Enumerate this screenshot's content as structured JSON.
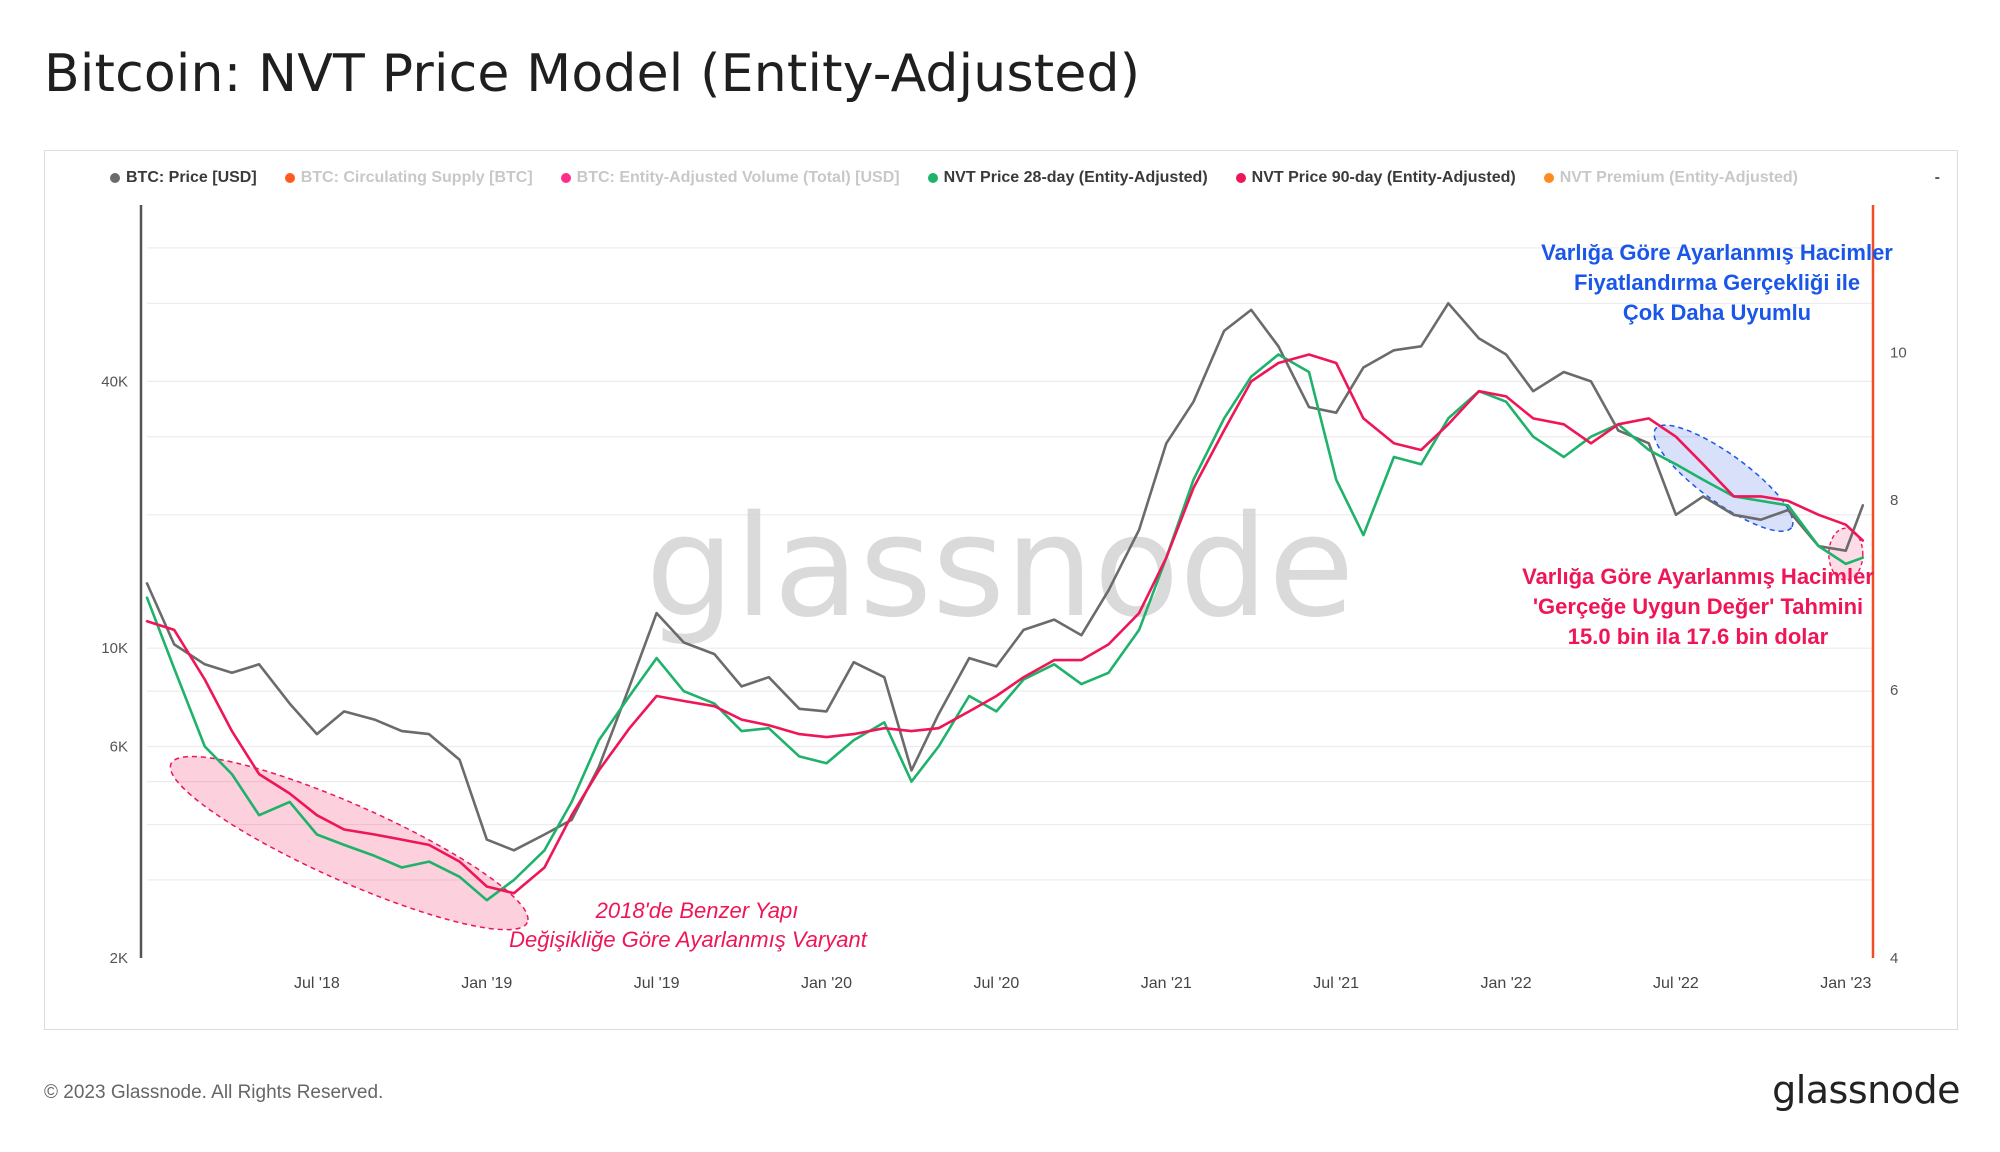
{
  "title": "Bitcoin: NVT Price Model (Entity-Adjusted)",
  "watermark": "glassnode",
  "footer": "© 2023 Glassnode. All Rights Reserved.",
  "brand": "glassnode",
  "legend": [
    {
      "label": "BTC: Price [USD]",
      "color": "#6b6b6b",
      "active": true
    },
    {
      "label": "BTC: Circulating Supply [BTC]",
      "color": "#ff5a1f",
      "active": false
    },
    {
      "label": "BTC: Entity-Adjusted Volume (Total) [USD]",
      "color": "#ff2d8a",
      "active": false
    },
    {
      "label": "NVT Price 28-day (Entity-Adjusted)",
      "color": "#1fb26b",
      "active": true
    },
    {
      "label": "NVT Price 90-day (Entity-Adjusted)",
      "color": "#ee1657",
      "active": true
    },
    {
      "label": "NVT Premium (Entity-Adjusted)",
      "color": "#ff8a1f",
      "active": false
    }
  ],
  "legend_trailing": "-",
  "annotations": {
    "left": [
      "2018'de Benzer Yapı",
      "Değişikliğe Göre Ayarlanmış Varyant"
    ],
    "top_right": [
      "Varlığa Göre Ayarlanmış Hacimler",
      "Fiyatlandırma Gerçekliği ile",
      "Çok Daha Uyumlu"
    ],
    "bottom_right": [
      "Varlığa Göre Ayarlanmış Hacimler",
      "'Gerçeğe Uygun Değer' Tahmini",
      "15.0 bin ila 17.6 bin dolar"
    ],
    "colors": {
      "pink": "#ee1657",
      "blue": "#1a56e8"
    }
  },
  "chart_data": {
    "type": "line",
    "x_tick_labels": [
      "Jul '18",
      "Jan '19",
      "Jul '19",
      "Jan '20",
      "Jul '20",
      "Jan '21",
      "Jul '21",
      "Jan '22",
      "Jul '22",
      "Jan '23"
    ],
    "x_tick_dates": [
      2018.5,
      2019.0,
      2019.5,
      2020.0,
      2020.5,
      2021.0,
      2021.5,
      2022.0,
      2022.5,
      2023.0
    ],
    "x_range": [
      2018.0,
      2023.08
    ],
    "y_left": {
      "scale": "log",
      "range": [
        2000,
        100000
      ],
      "tick_labels": [
        "2K",
        "6K",
        "10K",
        "40K"
      ],
      "tick_values": [
        2000,
        6000,
        10000,
        40000
      ]
    },
    "y_right": {
      "scale": "log",
      "range": [
        4,
        12.5
      ],
      "tick_labels": [
        "4",
        "6",
        "8",
        "10"
      ],
      "tick_values": [
        4,
        6,
        8,
        10
      ]
    },
    "grid": true,
    "x": [
      2018.0,
      2018.08,
      2018.17,
      2018.25,
      2018.33,
      2018.42,
      2018.5,
      2018.58,
      2018.67,
      2018.75,
      2018.83,
      2018.92,
      2019.0,
      2019.08,
      2019.17,
      2019.25,
      2019.33,
      2019.42,
      2019.5,
      2019.58,
      2019.67,
      2019.75,
      2019.83,
      2019.92,
      2020.0,
      2020.08,
      2020.17,
      2020.25,
      2020.33,
      2020.42,
      2020.5,
      2020.58,
      2020.67,
      2020.75,
      2020.83,
      2020.92,
      2021.0,
      2021.08,
      2021.17,
      2021.25,
      2021.33,
      2021.42,
      2021.5,
      2021.58,
      2021.67,
      2021.75,
      2021.83,
      2021.92,
      2022.0,
      2022.08,
      2022.17,
      2022.25,
      2022.33,
      2022.42,
      2022.5,
      2022.58,
      2022.67,
      2022.75,
      2022.83,
      2022.92,
      2023.0,
      2023.05
    ],
    "series": [
      {
        "name": "BTC: Price [USD]",
        "color": "#6b6b6b",
        "width": 2.6,
        "values": [
          14000,
          10200,
          9200,
          8800,
          9200,
          7500,
          6400,
          7200,
          6900,
          6500,
          6400,
          5600,
          3700,
          3500,
          3800,
          4100,
          5400,
          8200,
          12000,
          10300,
          9700,
          8200,
          8600,
          7300,
          7200,
          9300,
          8600,
          5300,
          7100,
          9500,
          9100,
          11000,
          11600,
          10700,
          13500,
          18500,
          29000,
          36000,
          52000,
          58000,
          48000,
          35000,
          34000,
          43000,
          47000,
          48000,
          60000,
          50000,
          46000,
          38000,
          42000,
          40000,
          31000,
          29000,
          20000,
          22000,
          20000,
          19500,
          20500,
          17000,
          16600,
          21000
        ]
      },
      {
        "name": "NVT Price 28-day (Entity-Adjusted)",
        "color": "#1fb26b",
        "width": 2.6,
        "values": [
          13000,
          9000,
          6000,
          5200,
          4200,
          4500,
          3800,
          3600,
          3400,
          3200,
          3300,
          3050,
          2700,
          3000,
          3500,
          4500,
          6200,
          7800,
          9500,
          8000,
          7500,
          6500,
          6600,
          5700,
          5500,
          6200,
          6800,
          5000,
          6000,
          7800,
          7200,
          8500,
          9200,
          8300,
          8800,
          11000,
          16000,
          24000,
          33000,
          41000,
          46000,
          42000,
          24000,
          18000,
          27000,
          26000,
          33000,
          38000,
          36000,
          30000,
          27000,
          30000,
          32000,
          28000,
          26000,
          24000,
          22000,
          21500,
          21000,
          17000,
          15500,
          16000
        ]
      },
      {
        "name": "NVT Price 90-day (Entity-Adjusted)",
        "color": "#ee1657",
        "width": 2.6,
        "values": [
          11500,
          11000,
          8500,
          6500,
          5200,
          4700,
          4200,
          3900,
          3800,
          3700,
          3600,
          3300,
          2900,
          2800,
          3200,
          4200,
          5300,
          6600,
          7800,
          7600,
          7400,
          6900,
          6700,
          6400,
          6300,
          6400,
          6600,
          6500,
          6600,
          7200,
          7800,
          8600,
          9400,
          9400,
          10200,
          12000,
          16000,
          23000,
          31000,
          40000,
          44000,
          46000,
          44000,
          33000,
          29000,
          28000,
          32000,
          38000,
          37000,
          33000,
          32000,
          29000,
          32000,
          33000,
          30000,
          26000,
          22000,
          22000,
          21500,
          20000,
          19000,
          17500
        ]
      }
    ]
  }
}
